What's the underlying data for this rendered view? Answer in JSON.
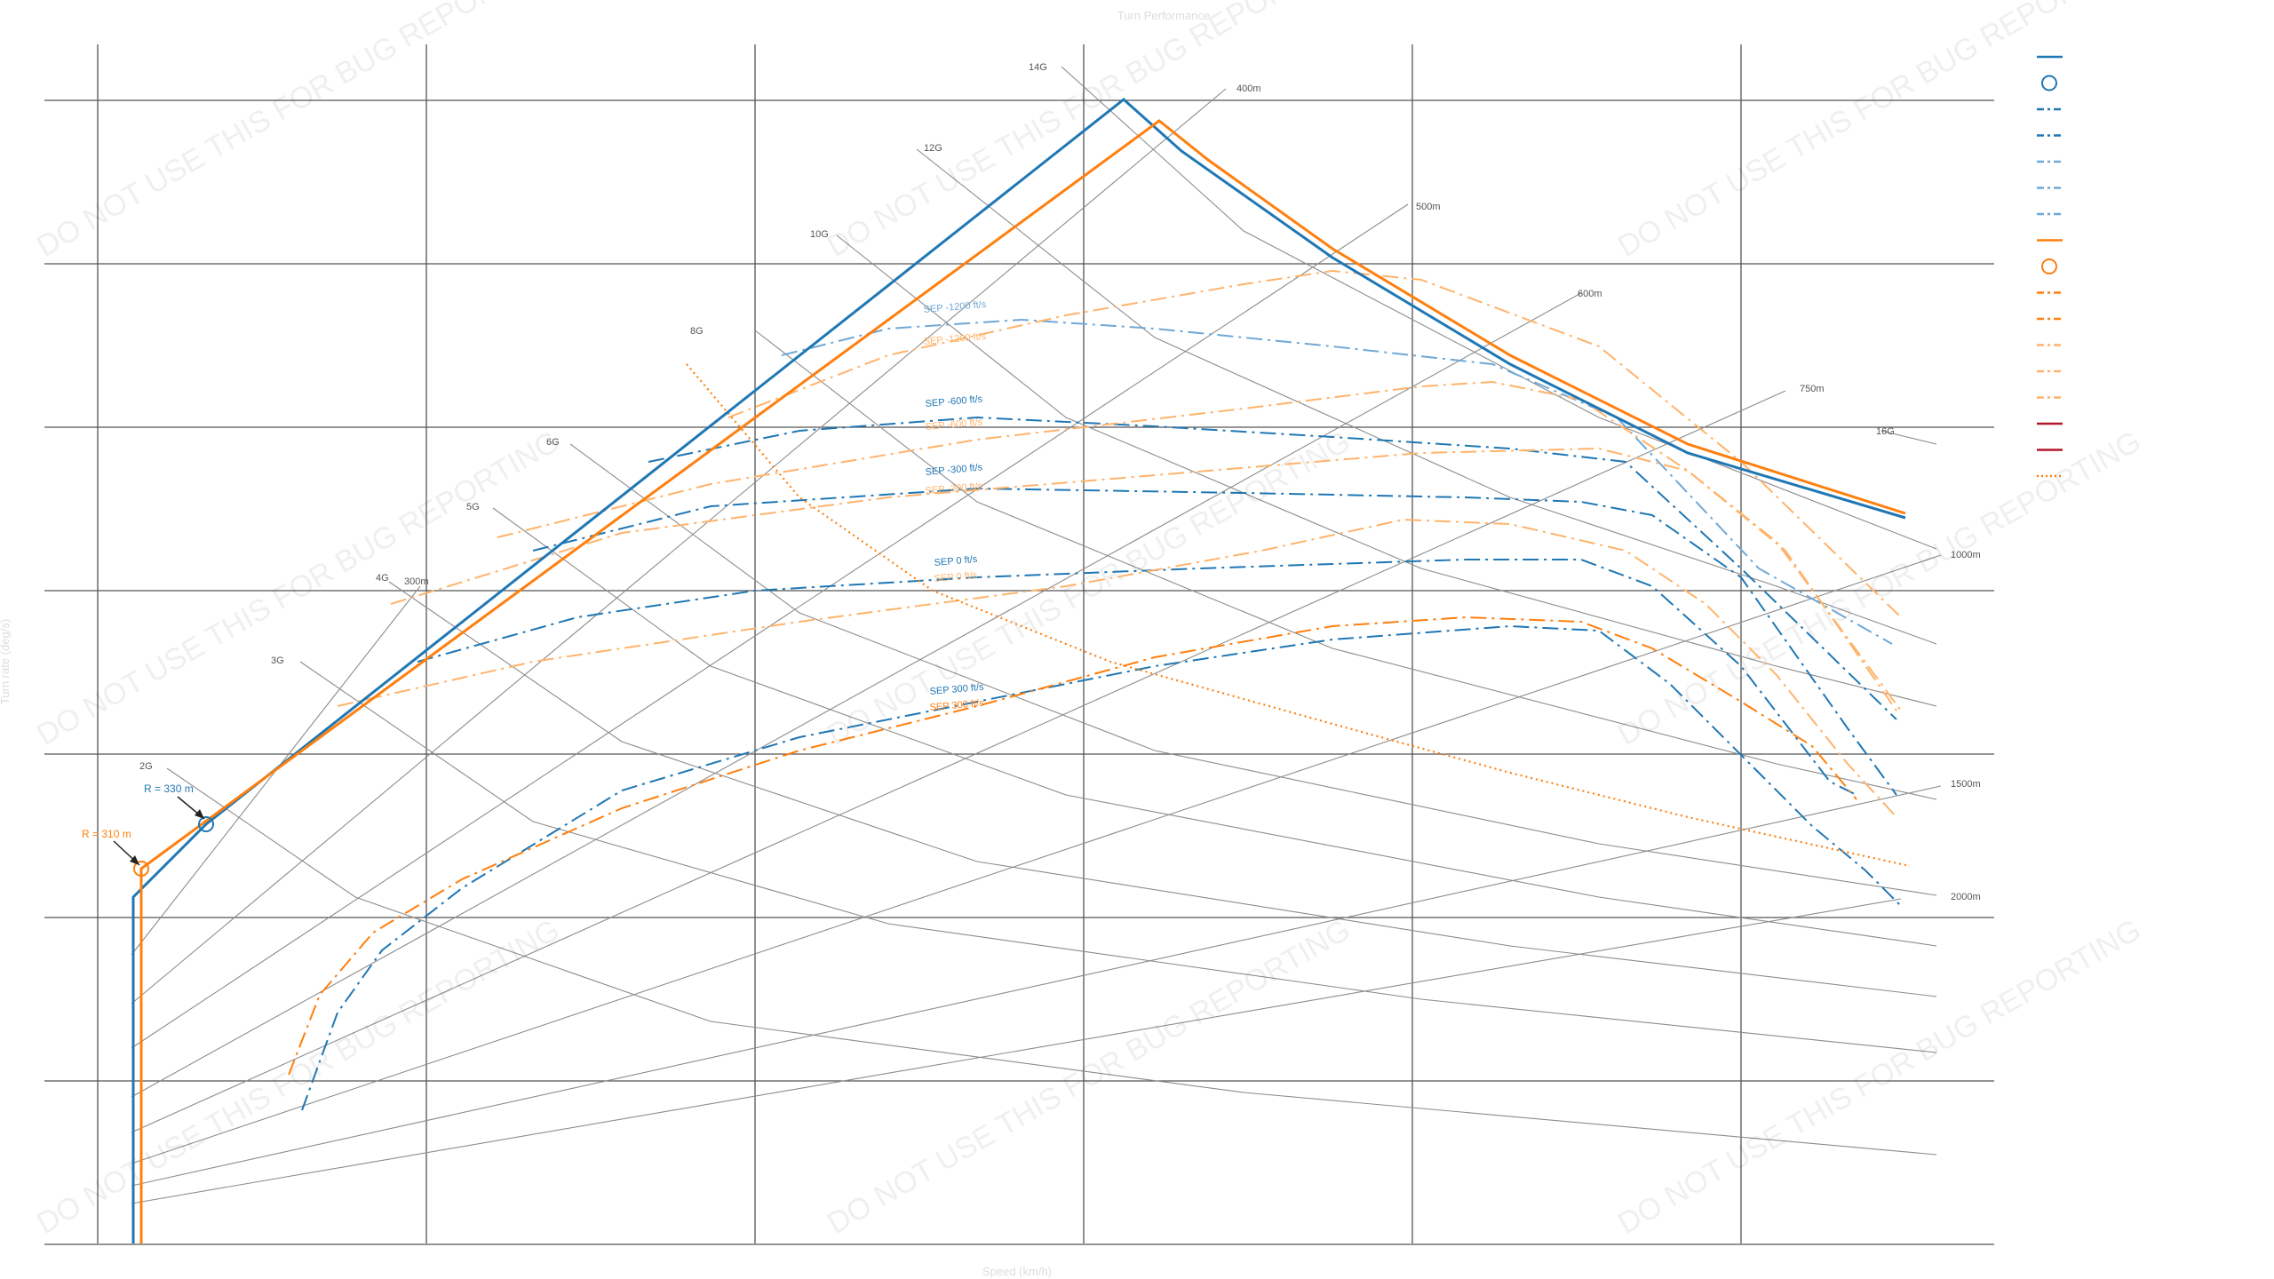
{
  "colors": {
    "blue": "#1f77b4",
    "blue_light": "#6fa8d6",
    "orange": "#ff7f0e",
    "orange_light": "#ffb36b",
    "grid": "#555555",
    "iso": "#8c8c8c",
    "red": "#b2182b"
  },
  "watermark": "DO NOT USE THIS FOR BUG REPORTING",
  "chart_data": {
    "type": "line",
    "title": "Turn Performance",
    "xlabel": "Speed (km/h)",
    "ylabel": "Turn rate (deg/s)",
    "grid": true,
    "legend": "right",
    "iso_g_labels": [
      "2G",
      "3G",
      "4G",
      "5G",
      "6G",
      "8G",
      "10G",
      "12G",
      "14G",
      "16G"
    ],
    "iso_radius_labels": [
      "300m",
      "400m",
      "500m",
      "600m",
      "750m",
      "1000m",
      "1500m",
      "2000m"
    ],
    "annotations": [
      {
        "text": "R = 330 m",
        "color": "blue"
      },
      {
        "text": "R = 310 m",
        "color": "orange"
      }
    ],
    "sep_labels": [
      {
        "text": "SEP -1200 ft/s",
        "color": "blue_light"
      },
      {
        "text": "SEP -1200 ft/s",
        "color": "orange_light"
      },
      {
        "text": "SEP -600 ft/s",
        "color": "blue"
      },
      {
        "text": "SEP -600 ft/s",
        "color": "orange_light"
      },
      {
        "text": "SEP -300 ft/s",
        "color": "blue"
      },
      {
        "text": "SEP -300 ft/s",
        "color": "orange_light"
      },
      {
        "text": "SEP 0 ft/s",
        "color": "blue"
      },
      {
        "text": "SEP 0 ft/s",
        "color": "orange_light"
      },
      {
        "text": "SEP 300 ft/s",
        "color": "blue"
      },
      {
        "text": "SEP 300 ft/s",
        "color": "orange"
      }
    ],
    "legend_entries": [
      {
        "label": "",
        "color": "blue",
        "style": "solid"
      },
      {
        "label": "",
        "color": "blue",
        "style": "circle"
      },
      {
        "label": "",
        "color": "blue",
        "style": "dashdot"
      },
      {
        "label": "",
        "color": "blue",
        "style": "dashdot"
      },
      {
        "label": "",
        "color": "blue_light",
        "style": "dashdot"
      },
      {
        "label": "",
        "color": "blue_light",
        "style": "dashdot"
      },
      {
        "label": "",
        "color": "blue_light",
        "style": "dashdot"
      },
      {
        "label": "",
        "color": "orange",
        "style": "solid"
      },
      {
        "label": "",
        "color": "orange",
        "style": "circle"
      },
      {
        "label": "",
        "color": "orange",
        "style": "dashdot"
      },
      {
        "label": "",
        "color": "orange",
        "style": "dashdot"
      },
      {
        "label": "",
        "color": "orange_light",
        "style": "dashdot"
      },
      {
        "label": "",
        "color": "orange_light",
        "style": "dashdot"
      },
      {
        "label": "",
        "color": "orange_light",
        "style": "dashdot"
      },
      {
        "label": "",
        "color": "red",
        "style": "solid"
      },
      {
        "label": "",
        "color": "red",
        "style": "solid"
      },
      {
        "label": "",
        "color": "orange",
        "style": "dotted"
      }
    ]
  }
}
